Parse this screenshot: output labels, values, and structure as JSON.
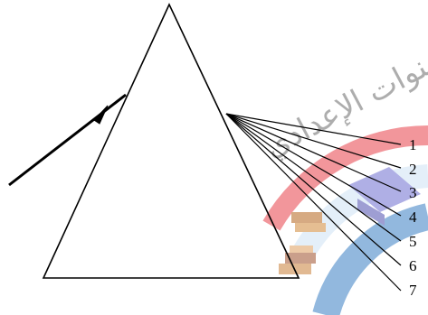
{
  "diagram": {
    "ray_labels": [
      "1",
      "2",
      "3",
      "4",
      "5",
      "6",
      "7"
    ]
  },
  "watermark": {
    "text": "سنوات الإعدادي",
    "colors": {
      "arc_red": "#e8424a",
      "arc_blue": "#3a7fc4",
      "arc_light": "#cfe2f5",
      "text": "#6b6b6b"
    }
  },
  "colors": {
    "line": "#000000",
    "background": "#ffffff"
  }
}
